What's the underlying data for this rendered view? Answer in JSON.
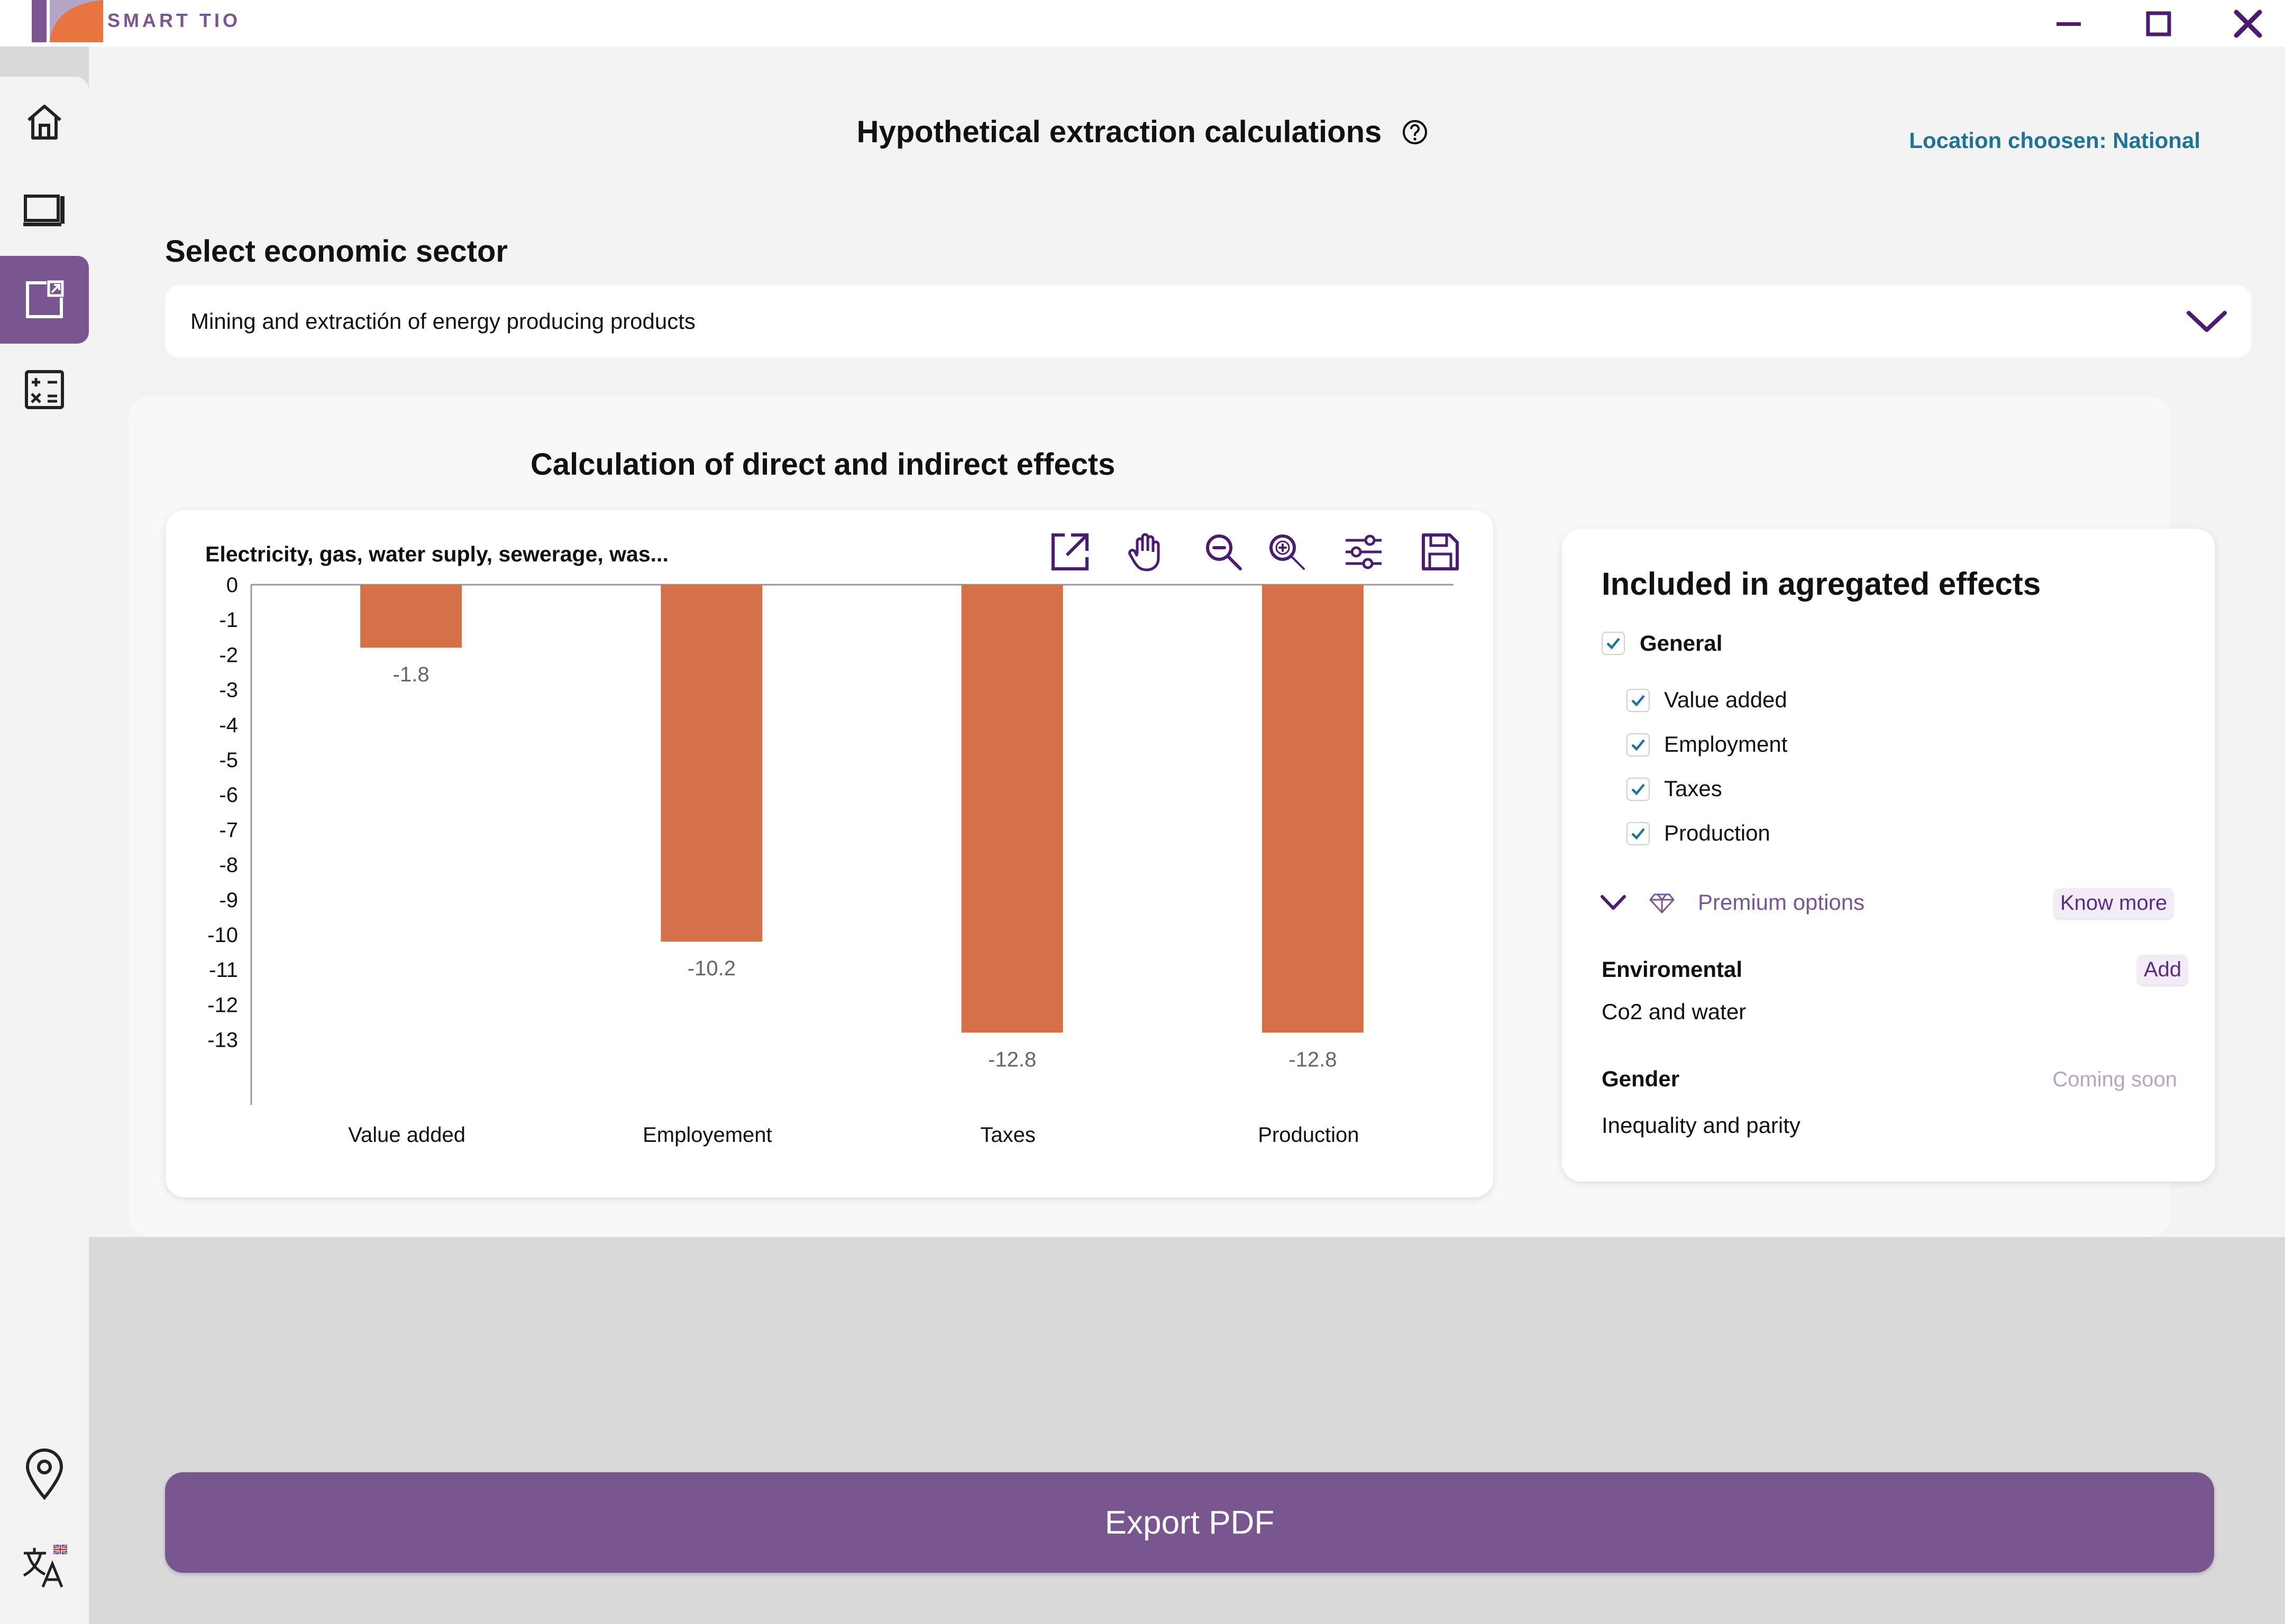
{
  "app": {
    "logo_text": "SMART TIO"
  },
  "header": {
    "title": "Hypothetical extraction calculations",
    "location": "Location choosen: National"
  },
  "sidebar": {
    "items": [
      {
        "icon": "home-icon"
      },
      {
        "icon": "monitor-icon"
      },
      {
        "icon": "extraction-icon",
        "active": true
      },
      {
        "icon": "calculator-icon"
      },
      {
        "icon": "location-pin-icon"
      },
      {
        "icon": "translate-icon"
      }
    ]
  },
  "sector": {
    "label": "Select economic sector",
    "value": "Mining and extractión of energy producing products"
  },
  "panel": {
    "title": "Calculation of direct and indirect effects"
  },
  "chart_data": {
    "type": "bar",
    "title": "Electricity, gas, water suply, sewerage, was...",
    "categories": [
      "Value added",
      "Employement",
      "Taxes",
      "Production"
    ],
    "values": [
      -1.8,
      -10.2,
      -12.8,
      -12.8
    ],
    "value_labels": [
      "-1.8",
      "-10.2",
      "-12.8",
      "-12.8"
    ],
    "y_ticks": [
      "0",
      "-1",
      "-2",
      "-3",
      "-4",
      "-5",
      "-6",
      "-7",
      "-8",
      "-9",
      "-10",
      "-11",
      "-12",
      "-13"
    ],
    "ylim": [
      -14.5,
      0
    ],
    "bar_color": "#d4704a",
    "grid": false,
    "legend": "none"
  },
  "effects": {
    "title": "Included in  agregated effects",
    "general": {
      "label": "General",
      "checked": true
    },
    "items": [
      {
        "label": "Value added",
        "checked": true
      },
      {
        "label": "Employment",
        "checked": true
      },
      {
        "label": "Taxes",
        "checked": true
      },
      {
        "label": "Production",
        "checked": true
      }
    ],
    "premium": {
      "label": "Premium options",
      "know_more": "Know more"
    },
    "environmental": {
      "title": "Enviromental",
      "subtitle": "Co2 and water",
      "action": "Add"
    },
    "gender": {
      "title": "Gender",
      "subtitle": "Inequality and parity",
      "status": "Coming soon"
    }
  },
  "export": {
    "label": "Export PDF"
  },
  "colors": {
    "accent": "#7a5690",
    "accent_dark": "#4b1d6e",
    "link": "#1f7396",
    "bar": "#d4704a"
  }
}
